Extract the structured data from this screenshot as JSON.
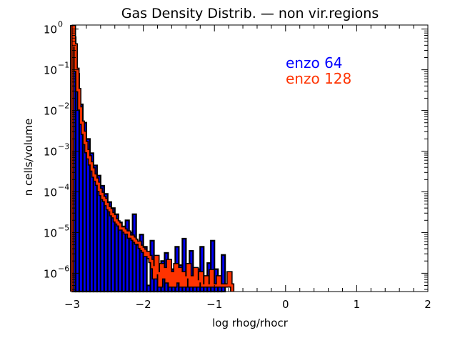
{
  "chart_data": {
    "type": "histogram",
    "title": "Gas Density Distrib. — non vir.regions",
    "xlabel": "log rhog/rhocr",
    "ylabel": "n cells/volume",
    "xlim": [
      -3,
      2
    ],
    "ylim_log10": [
      -6.45,
      0.1
    ],
    "yscale": "log",
    "x_ticks": [
      "−3",
      "−2",
      "−1",
      "0",
      "1",
      "2"
    ],
    "y_ticks": [
      {
        "base": "10",
        "exp": "0"
      },
      {
        "base": "10",
        "exp": "−1"
      },
      {
        "base": "10",
        "exp": "−2"
      },
      {
        "base": "10",
        "exp": "−3"
      },
      {
        "base": "10",
        "exp": "−4"
      },
      {
        "base": "10",
        "exp": "−5"
      },
      {
        "base": "10",
        "exp": "−6"
      }
    ],
    "legend_position": "top-right",
    "bin_start": -3.0,
    "series": [
      {
        "name": "enzo 64",
        "color": "#0000ff",
        "bin_width": 0.05,
        "log10_values": [
          -0.2,
          -1.1,
          -1.85,
          -2.3,
          -2.7,
          -3.05,
          -3.35,
          -3.6,
          -3.85,
          -4.05,
          -4.25,
          -4.4,
          -4.55,
          -4.75,
          -4.85,
          -4.7,
          -5.0,
          -4.55,
          -5.3,
          -5.05,
          -5.35,
          -6.3,
          -5.2,
          -5.6,
          -6.3,
          -5.7,
          -5.5,
          -6.1,
          -5.9,
          -5.35,
          -5.8,
          -5.15,
          -6.3,
          -5.45,
          -6.1,
          -5.9,
          -5.35,
          -6.3,
          -5.75,
          -5.2,
          -5.9,
          -6.3,
          -5.55
        ]
      },
      {
        "name": "enzo 128",
        "color": "#ff3300",
        "bin_width": 0.025,
        "log10_values": [
          0.05,
          -0.4,
          -1.0,
          -1.5,
          -1.95,
          -2.3,
          -2.55,
          -2.8,
          -3.0,
          -3.15,
          -3.3,
          -3.45,
          -3.6,
          -3.7,
          -3.8,
          -3.95,
          -4.05,
          -4.15,
          -4.2,
          -4.3,
          -4.4,
          -4.45,
          -4.55,
          -4.6,
          -4.7,
          -4.75,
          -4.8,
          -4.9,
          -4.9,
          -4.95,
          -5.0,
          -5.0,
          -5.1,
          -5.1,
          -5.15,
          -5.2,
          -5.25,
          -5.25,
          -5.35,
          -5.4,
          -5.45,
          -5.55,
          -5.5,
          -5.6,
          -5.7,
          -5.85,
          -6.1,
          -5.6,
          -6.0,
          -6.3,
          -5.8,
          -6.1,
          -5.9,
          -6.2,
          -5.7,
          -6.3,
          -6.0,
          -6.3,
          -5.8,
          -6.2,
          -5.9,
          -6.3,
          -6.0,
          -6.3,
          -6.1,
          -5.8,
          -6.3,
          -6.1,
          -6.3,
          -5.9,
          -6.3,
          -6.2,
          -6.0,
          -6.3,
          -6.3,
          -6.1,
          -6.3,
          -6.3,
          -5.95,
          -6.3,
          -6.3,
          -6.3,
          -6.1,
          -6.3,
          -6.3,
          -6.3,
          -6.3,
          -6.3,
          -6.0,
          -6.3
        ]
      }
    ]
  }
}
